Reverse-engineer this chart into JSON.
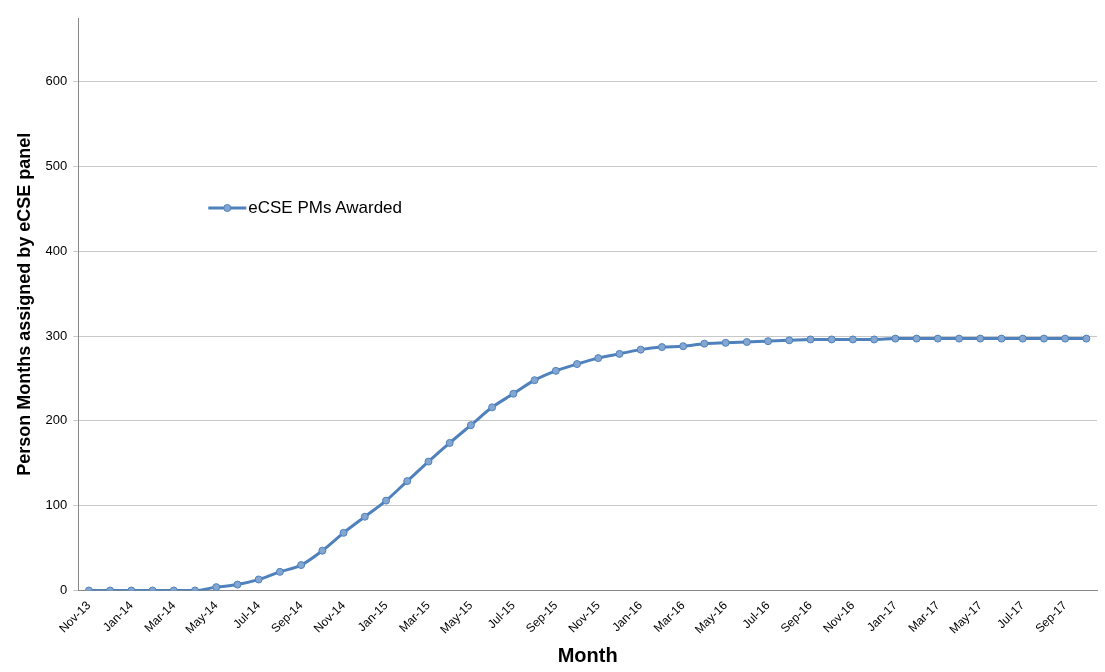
{
  "chart_data": {
    "type": "line",
    "xlabel": "Month",
    "ylabel": "Person Months assigned by eCSE panel",
    "categories": [
      "Nov-13",
      null,
      "Jan-14",
      null,
      "Mar-14",
      null,
      "May-14",
      null,
      "Jul-14",
      null,
      "Sep-14",
      null,
      "Nov-14",
      null,
      "Jan-15",
      null,
      "Mar-15",
      null,
      "May-15",
      null,
      "Jul-15",
      null,
      "Sep-15",
      null,
      "Nov-15",
      null,
      "Jan-16",
      null,
      "Mar-16",
      null,
      "May-16",
      null,
      "Jul-16",
      null,
      "Sep-16",
      null,
      "Nov-16",
      null,
      "Jan-17",
      null,
      "Mar-17",
      null,
      "May-17",
      null,
      "Jul-17",
      null,
      "Sep-17",
      null
    ],
    "series": [
      {
        "name": "eCSE PMs Awarded",
        "color": "#4f81bd",
        "values": [
          0,
          0,
          0,
          0,
          0,
          0,
          4,
          7,
          13,
          22,
          30,
          47,
          68,
          87,
          106,
          129,
          152,
          174,
          195,
          216,
          232,
          248,
          259,
          267,
          274,
          279,
          284,
          287,
          288,
          291,
          292,
          293,
          294,
          295,
          296,
          296,
          296,
          296,
          297,
          297,
          297,
          297,
          297,
          297,
          297,
          297,
          297,
          297
        ]
      }
    ],
    "ylim": [
      0,
      675
    ],
    "yticks": [
      0,
      100,
      200,
      300,
      400,
      500,
      600
    ],
    "grid": "y",
    "legend": "top left",
    "marker": "circle",
    "line_style": "solid"
  }
}
